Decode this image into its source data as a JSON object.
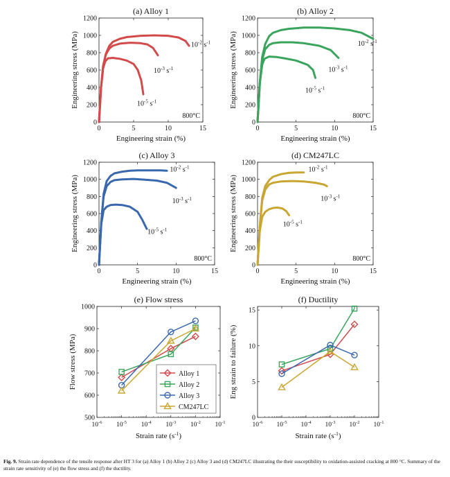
{
  "caption": {
    "label": "Fig. 9.",
    "text": "Strain rate dependence of the tensile response after HT 3 for (a) Alloy 1 (b) Alloy 2 (c) Alloy 3 and (d) CM247LC illustrating the their susceptibility to oxidation-assisted cracking at 800 °C. Summary of the strain rate sensitivity of (e) the flow stress and (f) the ductility."
  },
  "colors": {
    "alloy1": "#d44a4a",
    "alloy2": "#3aa45c",
    "alloy3": "#3a68ad",
    "cm247lc": "#c9a631"
  },
  "chart_data": [
    {
      "id": "a",
      "type": "line",
      "title": "(a) Alloy 1",
      "xlabel": "Engineering strain  (%)",
      "ylabel": "Engineering stress (MPa)",
      "xlim": [
        0,
        15
      ],
      "ylim": [
        0,
        1200
      ],
      "xticks": [
        0,
        5,
        10,
        15
      ],
      "yticks": [
        0,
        200,
        400,
        600,
        800,
        1000,
        1200
      ],
      "annotation": "800°C",
      "color_key": "alloy1",
      "series": [
        {
          "rate_label": "10-2 s-1",
          "label_at": [
            13.3,
            870
          ],
          "points": [
            [
              0,
              0
            ],
            [
              0.3,
              400
            ],
            [
              0.6,
              650
            ],
            [
              1,
              790
            ],
            [
              1.5,
              880
            ],
            [
              2,
              925
            ],
            [
              3,
              960
            ],
            [
              4,
              980
            ],
            [
              6,
              995
            ],
            [
              8,
              1000
            ],
            [
              10,
              995
            ],
            [
              11.5,
              975
            ],
            [
              12.5,
              935
            ],
            [
              13,
              880
            ]
          ]
        },
        {
          "rate_label": "10-3 s-1",
          "label_at": [
            7.9,
            570
          ],
          "points": [
            [
              0,
              0
            ],
            [
              0.3,
              400
            ],
            [
              0.6,
              650
            ],
            [
              1,
              780
            ],
            [
              1.5,
              850
            ],
            [
              2,
              880
            ],
            [
              3,
              905
            ],
            [
              4.5,
              915
            ],
            [
              6,
              910
            ],
            [
              7,
              895
            ],
            [
              7.8,
              855
            ],
            [
              8.5,
              770
            ]
          ]
        },
        {
          "rate_label": "10-5 s-1",
          "label_at": [
            5.5,
            190
          ],
          "points": [
            [
              0,
              0
            ],
            [
              0.3,
              400
            ],
            [
              0.6,
              620
            ],
            [
              0.9,
              700
            ],
            [
              1.3,
              735
            ],
            [
              2,
              740
            ],
            [
              3,
              730
            ],
            [
              4,
              710
            ],
            [
              5,
              670
            ],
            [
              5.6,
              600
            ],
            [
              6.1,
              480
            ],
            [
              6.4,
              320
            ]
          ]
        }
      ]
    },
    {
      "id": "b",
      "type": "line",
      "title": "(b) Alloy 2",
      "xlabel": "Engineering strain  (%)",
      "ylabel": "Engineering stress (MPa)",
      "xlim": [
        0,
        15
      ],
      "ylim": [
        0,
        1200
      ],
      "xticks": [
        0,
        5,
        10,
        15
      ],
      "yticks": [
        0,
        200,
        400,
        600,
        800,
        1000,
        1200
      ],
      "annotation": "800°C",
      "color_key": "alloy2",
      "series": [
        {
          "rate_label": "10-2 s-1",
          "label_at": [
            13.0,
            880
          ],
          "points": [
            [
              0,
              0
            ],
            [
              0.3,
              450
            ],
            [
              0.6,
              750
            ],
            [
              1,
              900
            ],
            [
              1.5,
              990
            ],
            [
              2,
              1030
            ],
            [
              3,
              1060
            ],
            [
              4,
              1075
            ],
            [
              6,
              1090
            ],
            [
              8,
              1090
            ],
            [
              10,
              1080
            ],
            [
              12,
              1060
            ],
            [
              13.5,
              1030
            ],
            [
              15,
              960
            ]
          ]
        },
        {
          "rate_label": "10-3 s-1",
          "label_at": [
            9.2,
            580
          ],
          "points": [
            [
              0,
              0
            ],
            [
              0.3,
              450
            ],
            [
              0.6,
              720
            ],
            [
              1,
              840
            ],
            [
              1.5,
              890
            ],
            [
              2,
              910
            ],
            [
              3,
              920
            ],
            [
              4.5,
              920
            ],
            [
              6,
              910
            ],
            [
              8,
              880
            ],
            [
              9.5,
              830
            ],
            [
              10.5,
              740
            ]
          ]
        },
        {
          "rate_label": "10-5 s-1",
          "label_at": [
            6.2,
            340
          ],
          "points": [
            [
              0,
              0
            ],
            [
              0.3,
              450
            ],
            [
              0.6,
              660
            ],
            [
              0.9,
              730
            ],
            [
              1.5,
              755
            ],
            [
              2.5,
              750
            ],
            [
              3.5,
              735
            ],
            [
              5,
              710
            ],
            [
              6.5,
              660
            ],
            [
              7.2,
              600
            ],
            [
              7.5,
              510
            ]
          ]
        }
      ]
    },
    {
      "id": "c",
      "type": "line",
      "title": "(c) Alloy 3",
      "xlabel": "Engineering strain  (%)",
      "ylabel": "Engineering stress (MPa)",
      "xlim": [
        0,
        15
      ],
      "ylim": [
        0,
        1200
      ],
      "xticks": [
        0,
        5,
        10,
        15
      ],
      "yticks": [
        0,
        200,
        400,
        600,
        800,
        1000,
        1200
      ],
      "annotation": "800°C",
      "color_key": "alloy3",
      "series": [
        {
          "rate_label": "10-2 s-1",
          "label_at": [
            9.2,
            1090
          ],
          "points": [
            [
              0,
              0
            ],
            [
              0.3,
              500
            ],
            [
              0.6,
              830
            ],
            [
              1,
              980
            ],
            [
              1.5,
              1040
            ],
            [
              2,
              1070
            ],
            [
              3,
              1090
            ],
            [
              4,
              1100
            ],
            [
              5,
              1105
            ],
            [
              6,
              1105
            ],
            [
              7,
              1105
            ],
            [
              8,
              1105
            ],
            [
              8.8,
              1100
            ]
          ]
        },
        {
          "rate_label": "10-3 s-1",
          "label_at": [
            9.5,
            720
          ],
          "points": [
            [
              0,
              0
            ],
            [
              0.3,
              500
            ],
            [
              0.6,
              800
            ],
            [
              1,
              920
            ],
            [
              1.5,
              970
            ],
            [
              2,
              990
            ],
            [
              3,
              1000
            ],
            [
              4.5,
              1005
            ],
            [
              6,
              995
            ],
            [
              7.5,
              985
            ],
            [
              8.8,
              960
            ],
            [
              10,
              900
            ]
          ]
        },
        {
          "rate_label": "10-5 s-1",
          "label_at": [
            6.3,
            360
          ],
          "points": [
            [
              0,
              0
            ],
            [
              0.3,
              480
            ],
            [
              0.6,
              640
            ],
            [
              1,
              680
            ],
            [
              1.5,
              700
            ],
            [
              2.2,
              705
            ],
            [
              3,
              700
            ],
            [
              4,
              680
            ],
            [
              5,
              620
            ],
            [
              5.6,
              530
            ],
            [
              6.2,
              420
            ]
          ]
        }
      ]
    },
    {
      "id": "d",
      "type": "line",
      "title": "(d) CM247LC",
      "xlabel": "Engineering strain  (%)",
      "ylabel": "Engineering stress (MPa)",
      "xlim": [
        0,
        15
      ],
      "ylim": [
        0,
        1200
      ],
      "xticks": [
        0,
        5,
        10,
        15
      ],
      "yticks": [
        0,
        200,
        400,
        600,
        800,
        1000,
        1200
      ],
      "annotation": "800°C",
      "color_key": "cm247lc",
      "series": [
        {
          "rate_label": "10-2 s-1",
          "label_at": [
            6.6,
            1090
          ],
          "points": [
            [
              0,
              0
            ],
            [
              0.3,
              450
            ],
            [
              0.6,
              780
            ],
            [
              1,
              920
            ],
            [
              1.5,
              990
            ],
            [
              2,
              1030
            ],
            [
              3,
              1060
            ],
            [
              4,
              1075
            ],
            [
              5,
              1080
            ],
            [
              6,
              1080
            ]
          ]
        },
        {
          "rate_label": "10-3 s-1",
          "label_at": [
            8.2,
            750
          ],
          "points": [
            [
              0,
              0
            ],
            [
              0.3,
              450
            ],
            [
              0.6,
              750
            ],
            [
              1,
              880
            ],
            [
              1.5,
              940
            ],
            [
              2,
              960
            ],
            [
              3,
              975
            ],
            [
              4.5,
              980
            ],
            [
              6,
              975
            ],
            [
              7.5,
              960
            ],
            [
              8.6,
              940
            ],
            [
              9,
              920
            ]
          ]
        },
        {
          "rate_label": "10-5 s-1",
          "label_at": [
            3.3,
            450
          ],
          "points": [
            [
              0,
              0
            ],
            [
              0.3,
              400
            ],
            [
              0.6,
              560
            ],
            [
              1,
              620
            ],
            [
              1.5,
              650
            ],
            [
              2,
              665
            ],
            [
              2.6,
              670
            ],
            [
              3.2,
              660
            ],
            [
              3.7,
              630
            ],
            [
              4.1,
              580
            ]
          ]
        }
      ]
    },
    {
      "id": "e",
      "type": "line",
      "title": "(e) Flow stress",
      "xlabel": "Strain rate (s",
      "xlabel_sup": "-1",
      "xlabel_end": ")",
      "ylabel": "Flow stress (MPa)",
      "xscale": "log",
      "xlim": [
        -6,
        -1
      ],
      "ylim": [
        500,
        1000
      ],
      "xticks": [
        -6,
        -5,
        -4,
        -3,
        -2,
        -1
      ],
      "yticks": [
        500,
        600,
        700,
        800,
        900,
        1000
      ],
      "legend_placement": "lower-right",
      "x": [
        1e-05,
        0.001,
        0.01
      ],
      "series": [
        {
          "name": "Alloy 1",
          "color_key": "alloy1",
          "marker": "diamond",
          "values": [
            680,
            810,
            865
          ]
        },
        {
          "name": "Alloy 2",
          "color_key": "alloy2",
          "marker": "square",
          "values": [
            705,
            785,
            905
          ]
        },
        {
          "name": "Alloy 3",
          "color_key": "alloy3",
          "marker": "circle",
          "values": [
            645,
            885,
            935
          ]
        },
        {
          "name": "CM247LC",
          "color_key": "cm247lc",
          "marker": "triangle",
          "values": [
            620,
            845,
            900
          ]
        }
      ]
    },
    {
      "id": "f",
      "type": "line",
      "title": "(f) Ductility",
      "xlabel": "Strain rate (s",
      "xlabel_sup": "-1",
      "xlabel_end": ")",
      "ylabel": "Eng strain to failure (%)",
      "xscale": "log",
      "xlim": [
        -6,
        -1
      ],
      "ylim": [
        0,
        15.5
      ],
      "xticks": [
        -6,
        -5,
        -4,
        -3,
        -2,
        -1
      ],
      "yticks": [
        0,
        5,
        10,
        15
      ],
      "x": [
        1e-05,
        0.001,
        0.01
      ],
      "series": [
        {
          "color_key": "alloy1",
          "marker": "diamond",
          "values": [
            6.5,
            8.8,
            13.0
          ]
        },
        {
          "color_key": "alloy2",
          "marker": "square",
          "values": [
            7.4,
            9.6,
            15.2
          ]
        },
        {
          "color_key": "alloy3",
          "marker": "circle",
          "values": [
            6.1,
            10.1,
            8.7
          ]
        },
        {
          "color_key": "cm247lc",
          "marker": "triangle",
          "values": [
            4.2,
            9.2,
            7.0
          ]
        }
      ]
    }
  ]
}
